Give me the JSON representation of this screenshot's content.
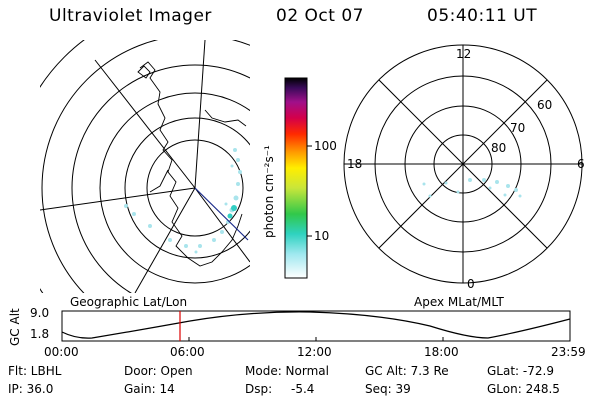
{
  "header": {
    "title": "Ultraviolet Imager",
    "date": "02 Oct 07",
    "time": "05:40:11 UT"
  },
  "colorbar": {
    "unit_label": "photon cm⁻²s⁻¹",
    "ticks": [
      "100",
      "10"
    ]
  },
  "geo_panel": {
    "label": "Geographic Lat/Lon"
  },
  "apex_panel": {
    "label": "Apex MLat/MLT",
    "mlt_labels": {
      "top": "12",
      "left": "18",
      "right": "6",
      "bottom": "0"
    },
    "mlat_labels": [
      "60",
      "70",
      "80"
    ]
  },
  "altitude_plot": {
    "ylabel": "GC Alt",
    "yticks": [
      "9.0",
      "1.8"
    ],
    "xticks": [
      "00:00",
      "06:00",
      "12:00",
      "18:00",
      "23:59"
    ]
  },
  "info": {
    "row1": [
      "Flt: LBHL",
      "Door: Open",
      "Mode: Normal",
      "GC Alt: 7.3 Re",
      "GLat: -72.9"
    ],
    "row2": [
      "IP: 36.0",
      "Gain: 14",
      "Dsp:",
      "-5.4",
      "Seq: 39",
      "GLon: 248.5"
    ]
  },
  "colors": {
    "marker": "#dd0000",
    "aurora": "#7fd6e0",
    "trajectory": "#1a2a8a"
  }
}
